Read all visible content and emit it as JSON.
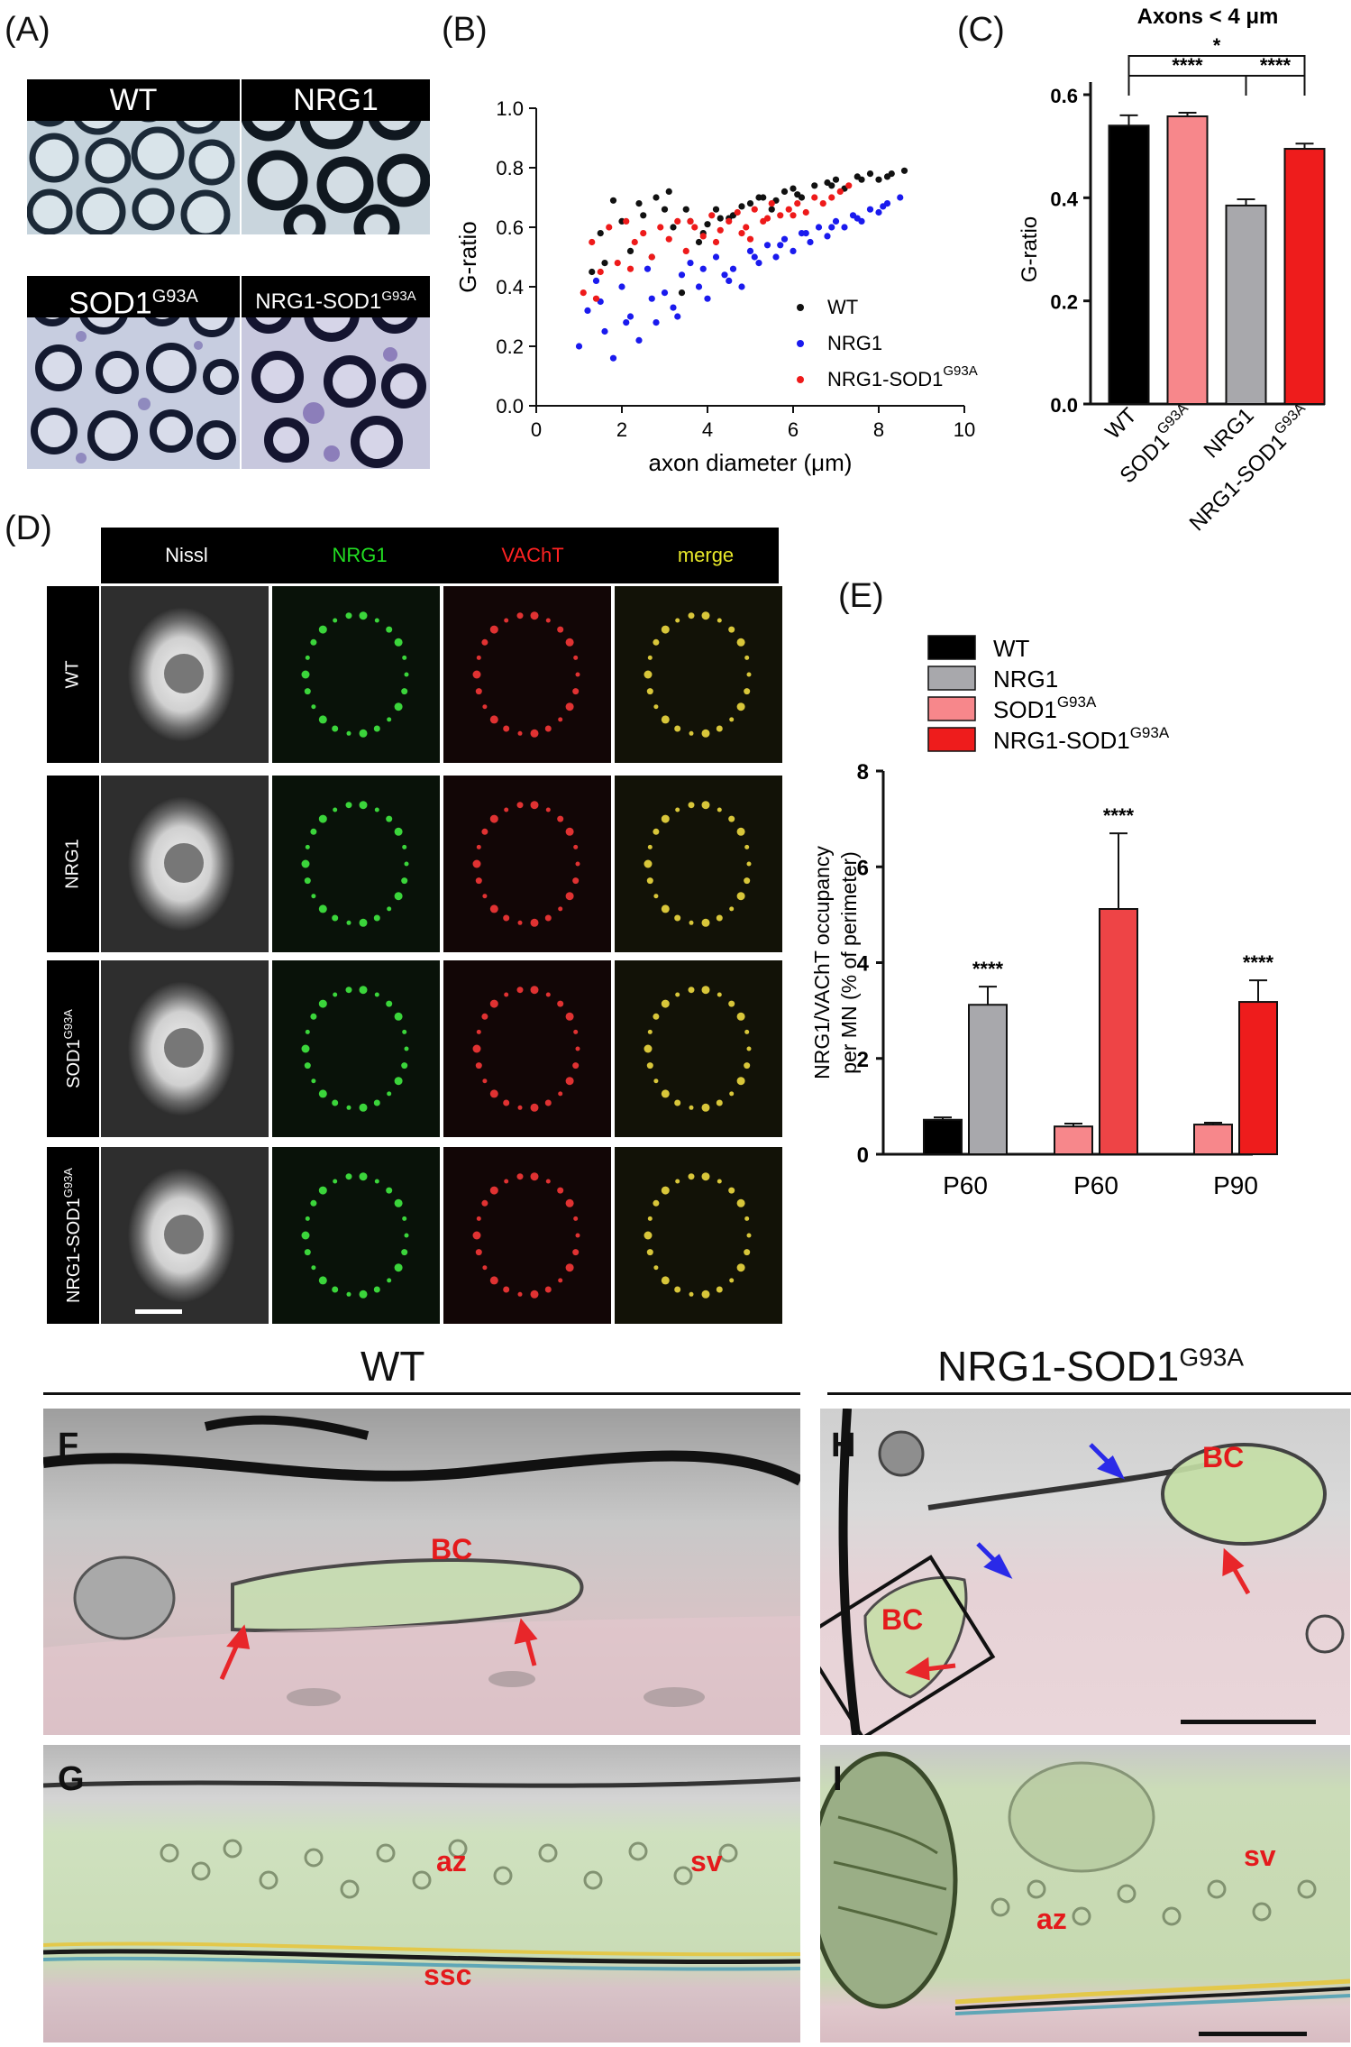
{
  "panels": {
    "A": {
      "letter": "(A)",
      "labels": [
        {
          "text": "WT",
          "sup": ""
        },
        {
          "text": "NRG1",
          "sup": ""
        },
        {
          "text": "SOD1",
          "sup": "G93A"
        },
        {
          "text": "NRG1-SOD1",
          "sup": "G93A"
        }
      ]
    },
    "B": {
      "letter": "(B)"
    },
    "C": {
      "letter": "(C)"
    },
    "D": {
      "letter": "(D)",
      "columns": [
        {
          "text": "Nissl",
          "color": "#ffffff"
        },
        {
          "text": "NRG1",
          "color": "#22dd22"
        },
        {
          "text": "VAChT",
          "color": "#ff2222"
        },
        {
          "text": "merge",
          "color": "#e8e82a"
        }
      ],
      "rows": [
        {
          "text": "WT",
          "sup": ""
        },
        {
          "text": "NRG1",
          "sup": ""
        },
        {
          "text": "SOD1",
          "sup": "G93A"
        },
        {
          "text": "NRG1-SOD1",
          "sup": "G93A"
        }
      ]
    },
    "E": {
      "letter": "(E)"
    },
    "EM": {
      "left_title": "WT",
      "right_title": {
        "text": "NRG1-SOD1",
        "sup": "G93A"
      },
      "F": {
        "letter": "F",
        "labels": [
          "BC"
        ]
      },
      "G": {
        "letter": "G",
        "labels": [
          "az",
          "sv",
          "ssc"
        ]
      },
      "H": {
        "letter": "H",
        "labels": [
          "BC",
          "BC"
        ]
      },
      "I": {
        "letter": "I",
        "labels": [
          "sv",
          "az"
        ]
      }
    }
  },
  "chart_data": [
    {
      "id": "B",
      "type": "scatter",
      "title": "",
      "xlabel": "axon diameter (μm)",
      "ylabel": "G-ratio",
      "xlim": [
        0,
        10
      ],
      "ylim": [
        0,
        1.0
      ],
      "xticks": [
        "0",
        "2",
        "4",
        "6",
        "8",
        "10"
      ],
      "yticks": [
        "0.0",
        "0.2",
        "0.4",
        "0.6",
        "0.8",
        "1.0"
      ],
      "legend_position": "lower-right",
      "series": [
        {
          "name": "WT",
          "sup": "",
          "color": "#111111",
          "x": [
            1.3,
            1.5,
            1.8,
            2.0,
            2.2,
            2.5,
            2.8,
            3.0,
            3.2,
            3.4,
            3.6,
            3.8,
            4.0,
            4.2,
            4.5,
            4.8,
            5.0,
            5.2,
            5.5,
            5.8,
            6.0,
            6.2,
            6.5,
            6.8,
            7.0,
            7.2,
            7.5,
            7.8,
            8.0,
            8.3,
            8.6,
            1.6,
            2.4,
            3.1,
            3.9,
            4.6,
            5.3,
            6.1,
            6.9,
            7.6,
            8.2,
            2.7,
            3.5,
            4.3,
            5.6
          ],
          "y": [
            0.45,
            0.58,
            0.69,
            0.62,
            0.52,
            0.64,
            0.7,
            0.66,
            0.6,
            0.38,
            0.62,
            0.55,
            0.61,
            0.66,
            0.63,
            0.67,
            0.68,
            0.7,
            0.66,
            0.72,
            0.73,
            0.7,
            0.74,
            0.75,
            0.76,
            0.73,
            0.77,
            0.78,
            0.76,
            0.78,
            0.79,
            0.48,
            0.68,
            0.72,
            0.58,
            0.64,
            0.7,
            0.71,
            0.74,
            0.76,
            0.77,
            0.5,
            0.66,
            0.63,
            0.69
          ]
        },
        {
          "name": "NRG1",
          "sup": "",
          "color": "#1a1aee",
          "x": [
            1.0,
            1.2,
            1.4,
            1.6,
            1.8,
            2.0,
            2.2,
            2.4,
            2.6,
            2.8,
            3.0,
            3.2,
            3.4,
            3.6,
            3.8,
            4.0,
            4.2,
            4.4,
            4.6,
            4.8,
            5.0,
            5.2,
            5.4,
            5.6,
            5.8,
            6.0,
            6.2,
            6.4,
            6.6,
            6.8,
            7.0,
            7.2,
            7.4,
            7.6,
            7.8,
            8.0,
            8.2,
            8.5,
            1.5,
            2.1,
            2.7,
            3.3,
            3.9,
            4.5,
            5.1,
            5.7,
            6.3,
            6.9,
            7.5,
            8.1
          ],
          "y": [
            0.2,
            0.32,
            0.42,
            0.25,
            0.16,
            0.4,
            0.3,
            0.22,
            0.46,
            0.28,
            0.38,
            0.33,
            0.44,
            0.48,
            0.4,
            0.36,
            0.5,
            0.44,
            0.46,
            0.4,
            0.52,
            0.48,
            0.54,
            0.5,
            0.56,
            0.52,
            0.58,
            0.55,
            0.6,
            0.57,
            0.62,
            0.6,
            0.64,
            0.62,
            0.66,
            0.65,
            0.68,
            0.7,
            0.35,
            0.28,
            0.36,
            0.3,
            0.46,
            0.42,
            0.5,
            0.54,
            0.58,
            0.6,
            0.63,
            0.67
          ]
        },
        {
          "name": "NRG1-SOD1",
          "sup": "G93A",
          "color": "#ee1a1a",
          "x": [
            1.1,
            1.3,
            1.5,
            1.7,
            1.9,
            2.1,
            2.3,
            2.5,
            2.7,
            2.9,
            3.1,
            3.3,
            3.5,
            3.7,
            3.9,
            4.1,
            4.3,
            4.5,
            4.7,
            4.9,
            5.1,
            5.3,
            5.5,
            5.7,
            5.9,
            6.1,
            6.3,
            6.5,
            6.7,
            6.9,
            7.1,
            7.3,
            4.2,
            4.8,
            5.4,
            6.0,
            3.6,
            2.2,
            1.4,
            5.0
          ],
          "y": [
            0.38,
            0.55,
            0.45,
            0.6,
            0.48,
            0.62,
            0.55,
            0.58,
            0.5,
            0.6,
            0.56,
            0.62,
            0.52,
            0.6,
            0.57,
            0.64,
            0.59,
            0.62,
            0.65,
            0.6,
            0.66,
            0.62,
            0.68,
            0.64,
            0.66,
            0.68,
            0.65,
            0.7,
            0.68,
            0.7,
            0.72,
            0.74,
            0.55,
            0.58,
            0.63,
            0.64,
            0.62,
            0.46,
            0.36,
            0.56
          ]
        }
      ]
    },
    {
      "id": "C",
      "type": "bar",
      "title": "Axons < 4 μm",
      "xlabel": "",
      "ylabel": "G-ratio",
      "ylim": [
        0,
        0.6
      ],
      "yticks": [
        "0.0",
        "0.2",
        "0.4",
        "0.6"
      ],
      "categories": [
        {
          "text": "WT",
          "sup": ""
        },
        {
          "text": "SOD1",
          "sup": "G93A"
        },
        {
          "text": "NRG1",
          "sup": ""
        },
        {
          "text": "NRG1-SOD1",
          "sup": "G93A"
        }
      ],
      "values": [
        0.54,
        0.558,
        0.385,
        0.495
      ],
      "errors": [
        0.02,
        0.007,
        0.012,
        0.01
      ],
      "colors": [
        "#000000",
        "#f7878b",
        "#a8a8ac",
        "#ee1c1c"
      ],
      "significance": [
        {
          "from": 0,
          "to": 2,
          "label": "****"
        },
        {
          "from": 0,
          "to": 3,
          "label": "*"
        },
        {
          "from": 2,
          "to": 3,
          "label": "****"
        }
      ]
    },
    {
      "id": "E",
      "type": "bar",
      "title": "",
      "xlabel": "",
      "ylabel": "NRG1/VAChT occupancy per MN (% of perimeter)",
      "ylim": [
        0,
        8
      ],
      "yticks": [
        "0",
        "2",
        "4",
        "6",
        "8"
      ],
      "legend_position": "top",
      "legend": [
        {
          "text": "WT",
          "sup": "",
          "color": "#000000"
        },
        {
          "text": "NRG1",
          "sup": "",
          "color": "#a8a8ac"
        },
        {
          "text": "SOD1",
          "sup": "G93A",
          "color": "#f7878b"
        },
        {
          "text": "NRG1-SOD1",
          "sup": "G93A",
          "color": "#ee1c1c"
        }
      ],
      "groups": [
        {
          "label": "P60",
          "bars": [
            {
              "series": "WT",
              "value": 0.72,
              "error": 0.05,
              "color": "#000000",
              "sig": ""
            },
            {
              "series": "NRG1",
              "value": 3.12,
              "error": 0.38,
              "color": "#a8a8ac",
              "sig": "****"
            }
          ]
        },
        {
          "label": "P60",
          "bars": [
            {
              "series": "SOD1G93A",
              "value": 0.58,
              "error": 0.06,
              "color": "#f7878b",
              "sig": ""
            },
            {
              "series": "NRG1-SOD1G93A",
              "value": 5.12,
              "error": 1.58,
              "color": "#ee4446",
              "sig": "****"
            }
          ]
        },
        {
          "label": "P90",
          "bars": [
            {
              "series": "SOD1G93A",
              "value": 0.62,
              "error": 0.04,
              "color": "#f7878b",
              "sig": ""
            },
            {
              "series": "NRG1-SOD1G93A",
              "value": 3.18,
              "error": 0.45,
              "color": "#ee1c1c",
              "sig": "****"
            }
          ]
        }
      ]
    }
  ]
}
